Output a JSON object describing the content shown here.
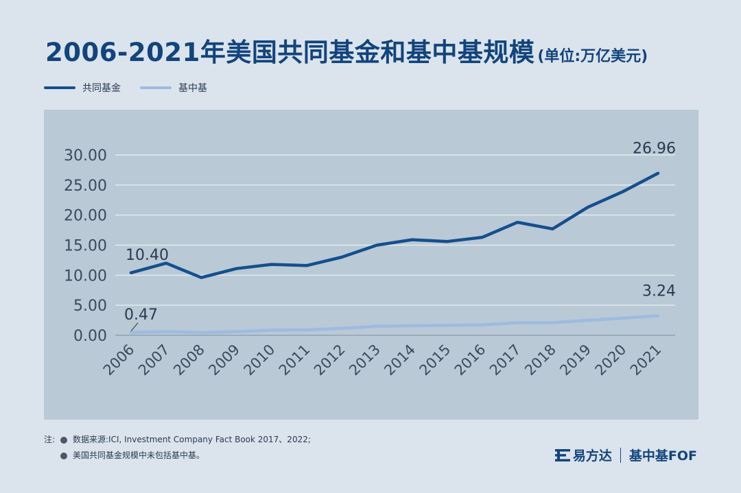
{
  "title": "2006-2021年美国共同基金和基中基规模",
  "unit": "(单位:万亿美元)",
  "colors": {
    "mutual_fund": "#154f8c",
    "fof": "#9dbbe0",
    "grid": "#e2eaf0",
    "plot_bg": "#b9c9d6"
  },
  "chart_data": {
    "type": "line",
    "title": "2006-2021年美国共同基金和基中基规模",
    "ylabel": "",
    "xlabel": "",
    "x": [
      "2006",
      "2007",
      "2008",
      "2009",
      "2010",
      "2011",
      "2012",
      "2013",
      "2014",
      "2015",
      "2016",
      "2017",
      "2018",
      "2019",
      "2020",
      "2021"
    ],
    "ylim": [
      0,
      30
    ],
    "yticks": [
      "0.00",
      "5.00",
      "10.00",
      "15.00",
      "20.00",
      "25.00",
      "30.00"
    ],
    "grid": true,
    "legend_position": "top-left",
    "series": [
      {
        "name": "共同基金",
        "values": [
          10.4,
          12.0,
          9.6,
          11.1,
          11.8,
          11.6,
          13.0,
          15.0,
          15.9,
          15.6,
          16.3,
          18.8,
          17.7,
          21.3,
          23.9,
          26.96
        ]
      },
      {
        "name": "基中基",
        "values": [
          0.47,
          0.6,
          0.45,
          0.6,
          0.85,
          0.9,
          1.15,
          1.5,
          1.6,
          1.65,
          1.75,
          2.1,
          2.1,
          2.5,
          2.85,
          3.24
        ]
      }
    ],
    "annotations": [
      {
        "series": 0,
        "index": 0,
        "text": "10.40"
      },
      {
        "series": 0,
        "index": 15,
        "text": "26.96"
      },
      {
        "series": 1,
        "index": 0,
        "text": "0.47"
      },
      {
        "series": 1,
        "index": 15,
        "text": "3.24"
      }
    ]
  },
  "notes": {
    "prefix": "注:",
    "lines": [
      "数据来源:ICI, Investment Company Fact Book 2017、2022;",
      "美国共同基金规模中未包括基中基。"
    ]
  },
  "brand": {
    "company": "易方达",
    "product": "基中基FOF",
    "icon": "efund-logo-icon"
  }
}
